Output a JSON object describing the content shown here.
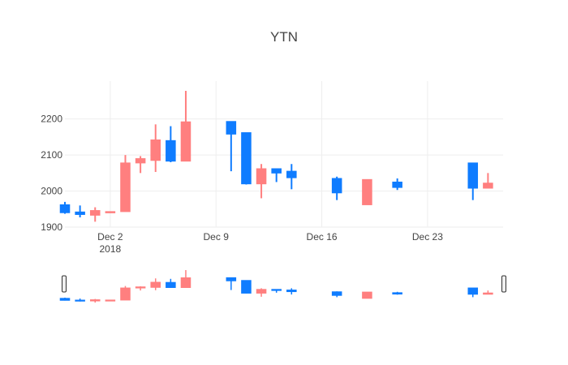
{
  "chart_data": {
    "type": "candlestick",
    "title": "YTN",
    "xlabel": "",
    "ylabel": "",
    "ylim": [
      1900,
      2305
    ],
    "yticks": [
      1900,
      2000,
      2100,
      2200
    ],
    "xticks": [
      {
        "date": "2018-12-02",
        "label": "Dec 2",
        "sublabel": "2018"
      },
      {
        "date": "2018-12-09",
        "label": "Dec 9",
        "sublabel": ""
      },
      {
        "date": "2018-12-16",
        "label": "Dec 16",
        "sublabel": ""
      },
      {
        "date": "2018-12-23",
        "label": "Dec 23",
        "sublabel": ""
      }
    ],
    "xlim": [
      "2018-11-29",
      "2018-12-28"
    ],
    "grid": true,
    "legend": "none",
    "rangeslider": true,
    "increasing_color": "#FF7F7F",
    "decreasing_color": "#0F7CFF",
    "candles": [
      {
        "date": "2018-11-29",
        "open": 1962,
        "high": 1970,
        "low": 1937,
        "close": 1940
      },
      {
        "date": "2018-11-30",
        "open": 1942,
        "high": 1960,
        "low": 1927,
        "close": 1935
      },
      {
        "date": "2018-12-01",
        "open": 1933,
        "high": 1955,
        "low": 1915,
        "close": 1946
      },
      {
        "date": "2018-12-02",
        "open": 1943,
        "high": 1943,
        "low": 1943,
        "close": 1943
      },
      {
        "date": "2018-12-03",
        "open": 1943,
        "high": 2100,
        "low": 1943,
        "close": 2078
      },
      {
        "date": "2018-12-04",
        "open": 2078,
        "high": 2097,
        "low": 2050,
        "close": 2090
      },
      {
        "date": "2018-12-05",
        "open": 2085,
        "high": 2185,
        "low": 2053,
        "close": 2142
      },
      {
        "date": "2018-12-06",
        "open": 2140,
        "high": 2180,
        "low": 2080,
        "close": 2083
      },
      {
        "date": "2018-12-07",
        "open": 2083,
        "high": 2278,
        "low": 2083,
        "close": 2192
      },
      {
        "date": "2018-12-10",
        "open": 2193,
        "high": 2193,
        "low": 2055,
        "close": 2158
      },
      {
        "date": "2018-12-11",
        "open": 2162,
        "high": 2162,
        "low": 2018,
        "close": 2020
      },
      {
        "date": "2018-12-12",
        "open": 2020,
        "high": 2075,
        "low": 1980,
        "close": 2062
      },
      {
        "date": "2018-12-13",
        "open": 2062,
        "high": 2062,
        "low": 2025,
        "close": 2050
      },
      {
        "date": "2018-12-14",
        "open": 2055,
        "high": 2075,
        "low": 2005,
        "close": 2037
      },
      {
        "date": "2018-12-17",
        "open": 2035,
        "high": 2040,
        "low": 1975,
        "close": 1995
      },
      {
        "date": "2018-12-19",
        "open": 1962,
        "high": 2032,
        "low": 1962,
        "close": 2032
      },
      {
        "date": "2018-12-21",
        "open": 2025,
        "high": 2035,
        "low": 2003,
        "close": 2010
      },
      {
        "date": "2018-12-26",
        "open": 2078,
        "high": 2078,
        "low": 1975,
        "close": 2008
      },
      {
        "date": "2018-12-27",
        "open": 2008,
        "high": 2050,
        "low": 2008,
        "close": 2022
      }
    ]
  }
}
